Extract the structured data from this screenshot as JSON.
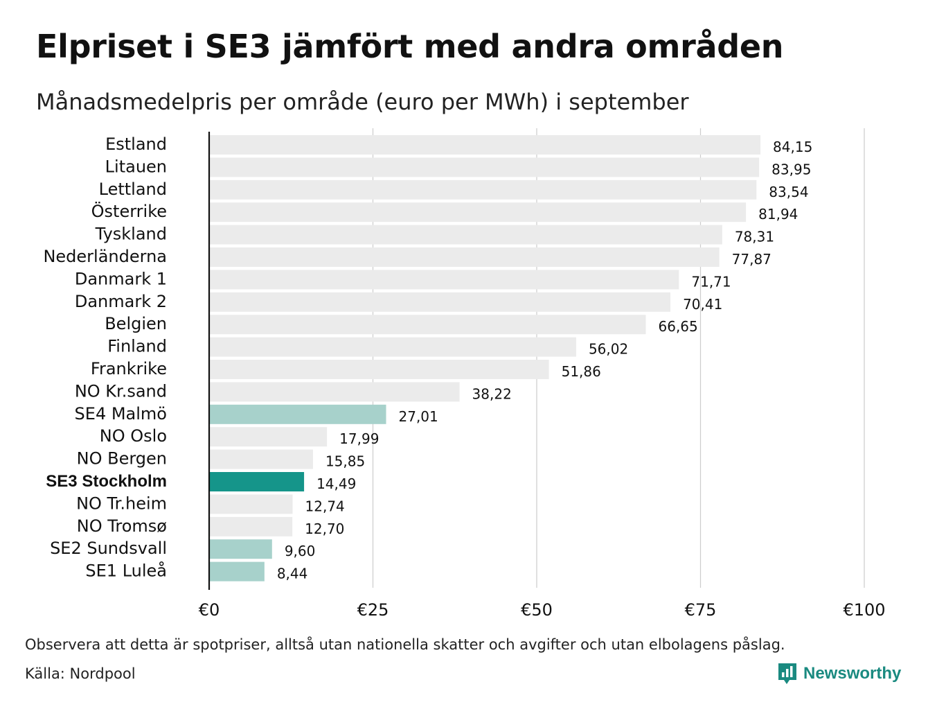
{
  "header": {
    "title": "Elpriset i SE3 jämfört med andra områden",
    "subtitle": "Månadsmedelpris per område (euro per MWh) i september"
  },
  "footer": {
    "note": "Observera att detta är spotpriser, alltså utan nationella skatter och avgifter och utan elbolagens påslag.",
    "source": "Källa: Nordpool",
    "logo_text": "Newsworthy",
    "logo_icon": "newsworthy-bar-chart-icon",
    "logo_color": "#1a8a80"
  },
  "colors": {
    "default_bar": "#ebebeb",
    "swedish_bar": "#a7d1cb",
    "highlight_bar": "#15958a",
    "gridline": "#cccccc",
    "axis": "#111111"
  },
  "chart_data": {
    "type": "bar",
    "orientation": "horizontal",
    "categories": [
      "Estland",
      "Litauen",
      "Lettland",
      "Österrike",
      "Tyskland",
      "Nederländerna",
      "Danmark 1",
      "Danmark 2",
      "Belgien",
      "Finland",
      "Frankrike",
      "NO Kr.sand",
      "SE4 Malmö",
      "NO Oslo",
      "NO Bergen",
      "SE3 Stockholm",
      "NO Tr.heim",
      "NO Tromsø",
      "SE2 Sundsvall",
      "SE1 Luleå"
    ],
    "values": [
      84.15,
      83.95,
      83.54,
      81.94,
      78.31,
      77.87,
      71.71,
      70.41,
      66.65,
      56.02,
      51.86,
      38.22,
      27.01,
      17.99,
      15.85,
      14.49,
      12.74,
      12.7,
      9.6,
      8.44
    ],
    "value_labels": [
      "84,15",
      "83,95",
      "83,54",
      "81,94",
      "78,31",
      "77,87",
      "71,71",
      "70,41",
      "66,65",
      "56,02",
      "51,86",
      "38,22",
      "27,01",
      "17,99",
      "15,85",
      "14,49",
      "12,74",
      "12,70",
      "9,60",
      "8,44"
    ],
    "bar_kind": [
      "other",
      "other",
      "other",
      "other",
      "other",
      "other",
      "other",
      "other",
      "other",
      "other",
      "other",
      "other",
      "swedish",
      "other",
      "other",
      "highlight",
      "other",
      "other",
      "swedish",
      "swedish"
    ],
    "highlight_category": "SE3 Stockholm",
    "xlim": [
      0,
      100
    ],
    "x_ticks": [
      0,
      25,
      50,
      75,
      100
    ],
    "x_tick_labels": [
      "€0",
      "€25",
      "€50",
      "€75",
      "€100"
    ],
    "grid": true
  }
}
